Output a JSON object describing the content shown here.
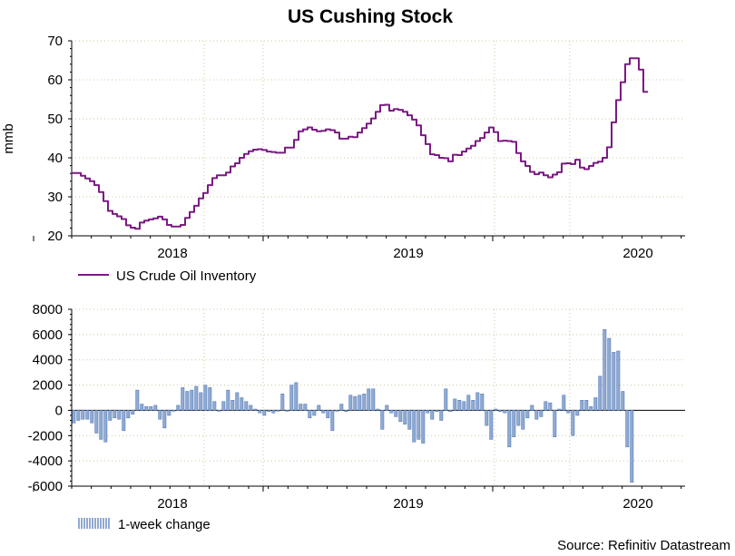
{
  "title": "US Cushing Stock",
  "source": "Source: Refinitiv Datastream",
  "colors": {
    "line": "#7a1a82",
    "bar": "#8eaad2",
    "bar_edge": "#4a6fb0",
    "grid": "#c8c8a0",
    "axis": "#000000"
  },
  "chart_data": [
    {
      "type": "line",
      "title": "US Cushing Stock",
      "ylabel": "mmb",
      "xlabel": "",
      "ylim": [
        20,
        70
      ],
      "yticks": [
        "20",
        "30",
        "40",
        "50",
        "60",
        "70"
      ],
      "xticks": [
        "2018",
        "2019",
        "2020"
      ],
      "grid": true,
      "legend": "bottom-left",
      "series": [
        {
          "name": "US Crude Oil Inventory",
          "x_start": "2017-09",
          "frequency": "weekly",
          "values": [
            36.1,
            36.1,
            35.4,
            34.7,
            34.0,
            33.0,
            31.2,
            28.9,
            26.4,
            25.6,
            25.0,
            24.3,
            22.7,
            22.1,
            21.8,
            23.4,
            23.9,
            24.2,
            24.5,
            24.9,
            24.2,
            22.8,
            22.4,
            22.4,
            22.8,
            24.6,
            26.1,
            27.7,
            29.6,
            31.0,
            33.0,
            34.8,
            35.5,
            35.5,
            36.2,
            37.8,
            38.6,
            40.0,
            41.0,
            41.7,
            42.1,
            42.2,
            42.0,
            41.6,
            41.5,
            41.3,
            41.3,
            42.6,
            42.6,
            44.6,
            46.8,
            47.3,
            47.8,
            47.2,
            46.8,
            46.9,
            47.3,
            47.1,
            46.5,
            44.9,
            44.9,
            45.4,
            45.3,
            46.5,
            47.6,
            48.8,
            50.1,
            51.8,
            53.5,
            53.6,
            52.1,
            52.5,
            52.3,
            51.8,
            50.9,
            49.8,
            48.3,
            45.8,
            43.5,
            40.9,
            40.7,
            40.0,
            39.9,
            39.1,
            40.8,
            40.7,
            41.6,
            42.4,
            43.1,
            44.3,
            45.1,
            46.5,
            47.8,
            46.6,
            44.3,
            44.4,
            44.3,
            44.1,
            41.2,
            39.1,
            37.9,
            36.4,
            35.8,
            36.2,
            35.5,
            35.0,
            35.7,
            36.3,
            38.5,
            38.6,
            38.4,
            39.5,
            37.5,
            37.1,
            37.9,
            38.7,
            39.0,
            40.0,
            42.7,
            49.1,
            54.8,
            59.4,
            64.0,
            65.5,
            65.5,
            62.6,
            56.9
          ]
        }
      ]
    },
    {
      "type": "bar",
      "title": "",
      "ylabel": "",
      "xlabel": "",
      "ylim": [
        -6000,
        8000
      ],
      "yticks": [
        "-6000",
        "-4000",
        "-2000",
        "0",
        "2000",
        "4000",
        "6000",
        "8000"
      ],
      "xticks": [
        "2018",
        "2019",
        "2020"
      ],
      "grid": true,
      "legend": "bottom-left",
      "series": [
        {
          "name": "1-week change",
          "x_start": "2017-09",
          "frequency": "weekly",
          "values": [
            -1000,
            -800,
            -700,
            -700,
            -1000,
            -1800,
            -2300,
            -2500,
            -800,
            -600,
            -700,
            -1600,
            -600,
            -300,
            1600,
            500,
            300,
            300,
            400,
            -700,
            -1400,
            -400,
            0,
            400,
            1800,
            1500,
            1600,
            1900,
            1400,
            2000,
            1800,
            700,
            0,
            700,
            1600,
            800,
            1400,
            1000,
            700,
            400,
            100,
            -200,
            -400,
            -100,
            -200,
            0,
            1300,
            0,
            2000,
            2200,
            500,
            500,
            -600,
            -400,
            400,
            -200,
            -600,
            -1600,
            0,
            500,
            -100,
            1200,
            1100,
            1200,
            1300,
            1700,
            1700,
            100,
            -1500,
            400,
            -200,
            -500,
            -900,
            -1100,
            -1500,
            -2500,
            -2300,
            -2600,
            -200,
            -700,
            -100,
            -800,
            1700,
            -100,
            900,
            800,
            700,
            1200,
            800,
            1400,
            1300,
            -1200,
            -2300,
            100,
            -100,
            -200,
            -2900,
            -2100,
            -1200,
            -1500,
            -600,
            400,
            -700,
            -500,
            700,
            600,
            -2100,
            100,
            1200,
            -200,
            -2000,
            -400,
            800,
            800,
            300,
            1000,
            2700,
            6400,
            5700,
            4600,
            4700,
            1500,
            -2900,
            -5700
          ]
        }
      ]
    }
  ]
}
